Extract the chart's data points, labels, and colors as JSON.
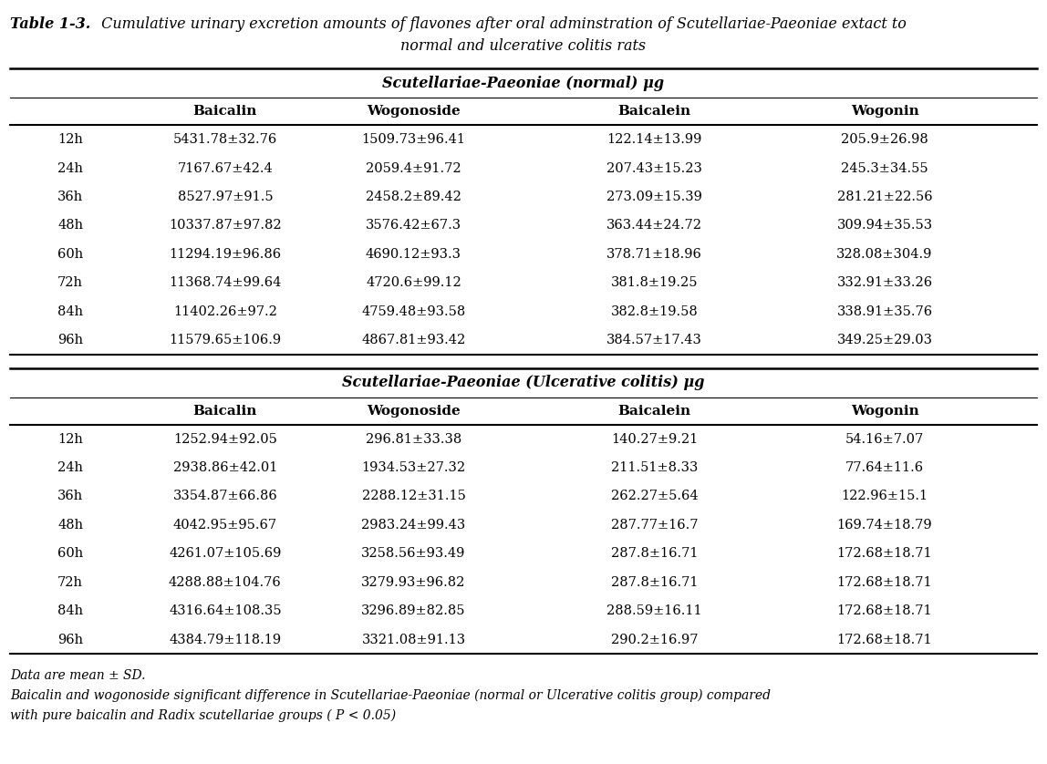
{
  "title_bold": "Table 1-3.",
  "title_rest": " Cumulative urinary excretion amounts of flavones after oral adminstration of Scutellariae-Paeoniae extact to",
  "title_line2": "normal and ulcerative colitis rats",
  "section1_header": "Scutellariae-Paeoniae (normal) μg",
  "section2_header": "Scutellariae-Paeoniae (Ulcerative colitis) μg",
  "col_headers": [
    "",
    "Baicalin",
    "Wogonoside",
    "Baicalein",
    "Wogonin"
  ],
  "time_points": [
    "12h",
    "24h",
    "36h",
    "48h",
    "60h",
    "72h",
    "84h",
    "96h"
  ],
  "normal_data": [
    [
      "5431.78±32.76",
      "1509.73±96.41",
      "122.14±13.99",
      "205.9±26.98"
    ],
    [
      "7167.67±42.4",
      "2059.4±91.72",
      "207.43±15.23",
      "245.3±34.55"
    ],
    [
      "8527.97±91.5",
      "2458.2±89.42",
      "273.09±15.39",
      "281.21±22.56"
    ],
    [
      "10337.87±97.82",
      "3576.42±67.3",
      "363.44±24.72",
      "309.94±35.53"
    ],
    [
      "11294.19±96.86",
      "4690.12±93.3",
      "378.71±18.96",
      "328.08±304.9"
    ],
    [
      "11368.74±99.64",
      "4720.6±99.12",
      "381.8±19.25",
      "332.91±33.26"
    ],
    [
      "11402.26±97.2",
      "4759.48±93.58",
      "382.8±19.58",
      "338.91±35.76"
    ],
    [
      "11579.65±106.9",
      "4867.81±93.42",
      "384.57±17.43",
      "349.25±29.03"
    ]
  ],
  "ulcerative_data": [
    [
      "1252.94±92.05",
      "296.81±33.38",
      "140.27±9.21",
      "54.16±7.07"
    ],
    [
      "2938.86±42.01",
      "1934.53±27.32",
      "211.51±8.33",
      "77.64±11.6"
    ],
    [
      "3354.87±66.86",
      "2288.12±31.15",
      "262.27±5.64",
      "122.96±15.1"
    ],
    [
      "4042.95±95.67",
      "2983.24±99.43",
      "287.77±16.7",
      "169.74±18.79"
    ],
    [
      "4261.07±105.69",
      "3258.56±93.49",
      "287.8±16.71",
      "172.68±18.71"
    ],
    [
      "4288.88±104.76",
      "3279.93±96.82",
      "287.8±16.71",
      "172.68±18.71"
    ],
    [
      "4316.64±108.35",
      "3296.89±82.85",
      "288.59±16.11",
      "172.68±18.71"
    ],
    [
      "4384.79±118.19",
      "3321.08±91.13",
      "290.2±16.97",
      "172.68±18.71"
    ]
  ],
  "footnote1": "Data are mean ± SD.",
  "footnote2": "Baicalin and wogonoside significant difference in Scutellariae-Paeoniae (normal or Ulcerative colitis group) compared",
  "footnote3": "with pure baicalin and Radix scutellariae groups ( P < 0.05)",
  "bg_color": "#ffffff"
}
